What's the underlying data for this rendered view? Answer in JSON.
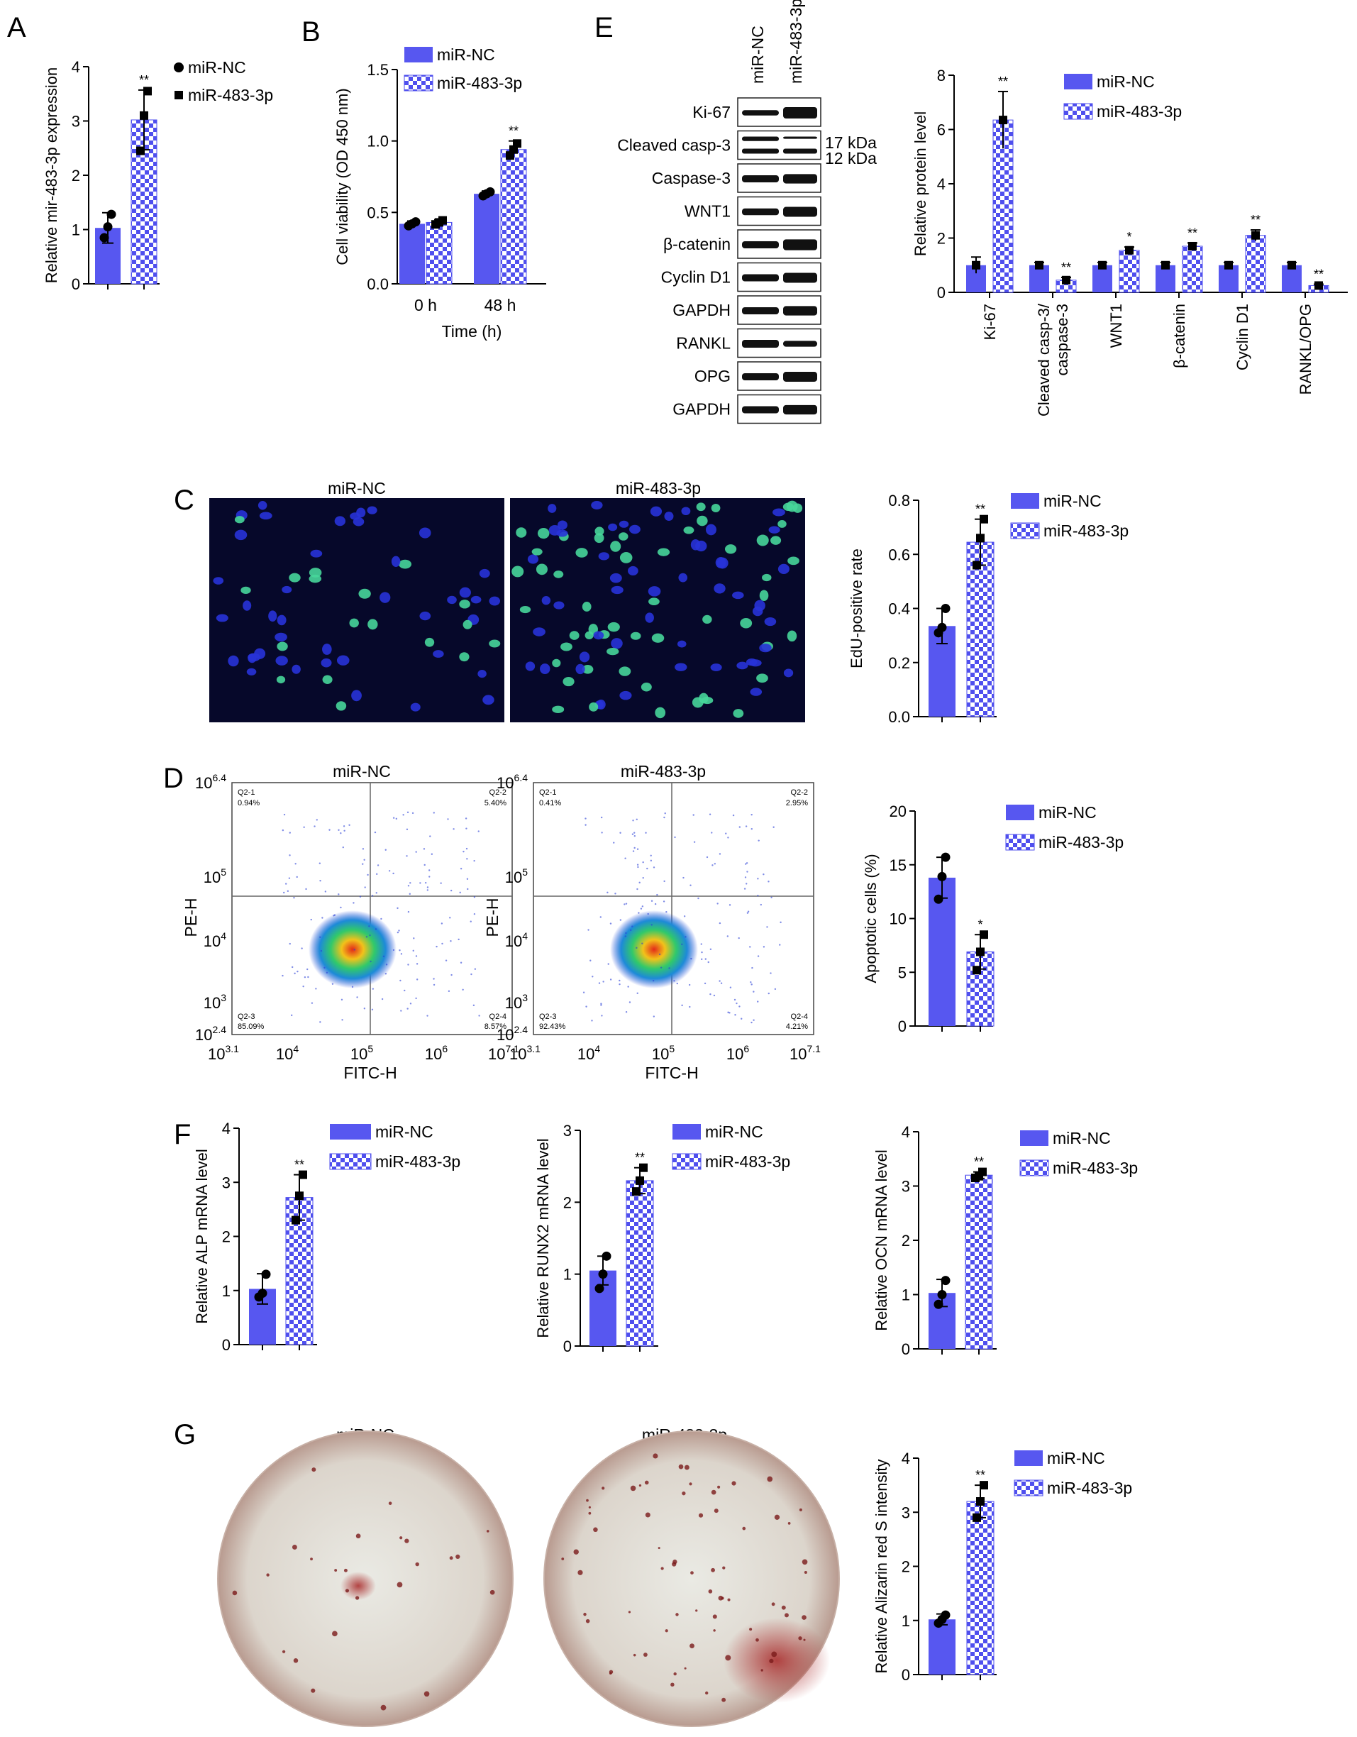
{
  "colors": {
    "nc": "#5757F0",
    "mir": "#4F4FEE",
    "axis": "#000000"
  },
  "panel_letters": [
    "A",
    "B",
    "C",
    "D",
    "E",
    "F",
    "G"
  ],
  "legend": {
    "nc": "miR-NC",
    "mir": "miR-483-3p"
  },
  "blot": {
    "lanes": [
      "miR-NC",
      "miR-483-3p"
    ],
    "proteins": [
      "Ki-67",
      "Cleaved casp-3",
      "Caspase-3",
      "WNT1",
      "β-catenin",
      "Cyclin D1",
      "GAPDH",
      "RANKL",
      "OPG",
      "GAPDH"
    ],
    "kda": [
      "17 kDa",
      "12 kDa"
    ]
  },
  "images": {
    "C": [
      "miR-NC",
      "miR-483-3p"
    ],
    "D": [
      "miR-NC",
      "miR-483-3p"
    ],
    "G": [
      "miR-NC",
      "miR-483-3p"
    ]
  },
  "flow": {
    "ylabel": "PE-H",
    "xlabel": "FITC-H",
    "yticks": [
      [
        "10",
        "6.4"
      ],
      [
        "10",
        "5"
      ],
      [
        "10",
        "4"
      ],
      [
        "10",
        "3"
      ],
      [
        "10",
        "2.4"
      ]
    ],
    "xticks": [
      [
        "10",
        "3.1"
      ],
      [
        "10",
        "4"
      ],
      [
        "10",
        "5"
      ],
      [
        "10",
        "6"
      ],
      [
        "10",
        "7.1"
      ]
    ],
    "plots": [
      {
        "q1": [
          "Q2-1",
          "0.94%"
        ],
        "q2": [
          "Q2-2",
          "5.40%"
        ],
        "q3": [
          "Q2-3",
          "85.09%"
        ],
        "q4": [
          "Q2-4",
          "8.57%"
        ]
      },
      {
        "q1": [
          "Q2-1",
          "0.41%"
        ],
        "q2": [
          "Q2-2",
          "2.95%"
        ],
        "q3": [
          "Q2-3",
          "92.43%"
        ],
        "q4": [
          "Q2-4",
          "4.21%"
        ]
      }
    ]
  },
  "chart_data": [
    {
      "id": "A",
      "type": "bar",
      "ylabel": "Relative mir-483-3p expression",
      "ylim": [
        0,
        4
      ],
      "yticks": [
        "0",
        "1",
        "2",
        "3",
        "4"
      ],
      "categories": [
        "miR-NC",
        "miR-483-3p"
      ],
      "values": [
        1.03,
        3.02
      ],
      "errors": [
        0.28,
        0.55
      ],
      "sig": [
        "",
        "**"
      ],
      "points": [
        [
          0.85,
          1.05,
          1.28
        ],
        [
          2.45,
          3.1,
          3.55
        ]
      ],
      "legend": [
        "miR-NC",
        "miR-483-3p"
      ]
    },
    {
      "id": "B",
      "type": "bar",
      "ylabel": "Cell viability (OD 450 nm)",
      "xlabel": "Time (h)",
      "ylim": [
        0,
        1.5
      ],
      "yticks": [
        "0.0",
        "0.5",
        "1.0",
        "1.5"
      ],
      "categories": [
        "0 h",
        "48 h"
      ],
      "series": [
        {
          "name": "miR-NC",
          "values": [
            0.42,
            0.63
          ],
          "errors": [
            0.02,
            0.02
          ]
        },
        {
          "name": "miR-483-3p",
          "values": [
            0.43,
            0.94
          ],
          "errors": [
            0.02,
            0.06
          ]
        }
      ],
      "sig": [
        "",
        "**"
      ]
    },
    {
      "id": "E",
      "type": "bar",
      "ylabel": "Relative protein level",
      "ylim": [
        0,
        8
      ],
      "yticks": [
        "0",
        "2",
        "4",
        "6",
        "8"
      ],
      "categories": [
        "Ki-67",
        "Cleaved casp-3/\ncaspase-3",
        "WNT1",
        "β-catenin",
        "Cyclin D1",
        "RANKL/OPG"
      ],
      "series": [
        {
          "name": "miR-NC",
          "values": [
            1.0,
            1.0,
            1.0,
            1.0,
            1.0,
            1.0
          ],
          "errors": [
            0.3,
            0.1,
            0.1,
            0.1,
            0.1,
            0.1
          ]
        },
        {
          "name": "miR-483-3p",
          "values": [
            6.35,
            0.45,
            1.55,
            1.7,
            2.1,
            0.25
          ],
          "errors": [
            1.05,
            0.1,
            0.12,
            0.12,
            0.2,
            0.05
          ]
        }
      ],
      "sig": [
        "**",
        "**",
        "*",
        "**",
        "**",
        "**"
      ]
    },
    {
      "id": "C",
      "type": "bar",
      "ylabel": "EdU-positive rate",
      "ylim": [
        0,
        0.8
      ],
      "yticks": [
        "0.0",
        "0.2",
        "0.4",
        "0.6",
        "0.8"
      ],
      "categories": [
        "miR-NC",
        "miR-483-3p"
      ],
      "values": [
        0.335,
        0.645
      ],
      "errors": [
        0.065,
        0.085
      ],
      "sig": [
        "",
        "**"
      ],
      "points": [
        [
          0.31,
          0.33,
          0.4
        ],
        [
          0.56,
          0.66,
          0.73
        ]
      ]
    },
    {
      "id": "D",
      "type": "bar",
      "ylabel": "Apoptotic cells (%)",
      "ylim": [
        0,
        20
      ],
      "yticks": [
        "0",
        "5",
        "10",
        "15",
        "20"
      ],
      "categories": [
        "miR-NC",
        "miR-483-3p"
      ],
      "values": [
        13.8,
        6.9
      ],
      "errors": [
        1.9,
        1.6
      ],
      "sig": [
        "",
        "*"
      ],
      "points": [
        [
          11.8,
          13.9,
          15.7
        ],
        [
          5.2,
          6.9,
          8.5
        ]
      ]
    },
    {
      "id": "F1",
      "type": "bar",
      "ylabel": "Relative ALP mRNA level",
      "ylim": [
        0,
        4
      ],
      "yticks": [
        "0",
        "1",
        "2",
        "3",
        "4"
      ],
      "categories": [
        "miR-NC",
        "miR-483-3p"
      ],
      "values": [
        1.03,
        2.72
      ],
      "errors": [
        0.28,
        0.42
      ],
      "sig": [
        "",
        "**"
      ],
      "points": [
        [
          0.88,
          0.95,
          1.3
        ],
        [
          2.3,
          2.75,
          3.14
        ]
      ]
    },
    {
      "id": "F2",
      "type": "bar",
      "ylabel": "Relative RUNX2 mRNA level",
      "ylim": [
        0,
        3
      ],
      "yticks": [
        "0",
        "1",
        "2",
        "3"
      ],
      "categories": [
        "miR-NC",
        "miR-483-3p"
      ],
      "values": [
        1.05,
        2.3
      ],
      "errors": [
        0.2,
        0.18
      ],
      "sig": [
        "",
        "**"
      ],
      "points": [
        [
          0.8,
          1.0,
          1.25
        ],
        [
          2.15,
          2.3,
          2.48
        ]
      ]
    },
    {
      "id": "F3",
      "type": "bar",
      "ylabel": "Relative OCN mRNA level",
      "ylim": [
        0,
        4
      ],
      "yticks": [
        "0",
        "1",
        "2",
        "3",
        "4"
      ],
      "categories": [
        "miR-NC",
        "miR-483-3p"
      ],
      "values": [
        1.03,
        3.2
      ],
      "errors": [
        0.25,
        0.06
      ],
      "sig": [
        "",
        "**"
      ],
      "points": [
        [
          0.82,
          1.0,
          1.26
        ],
        [
          3.15,
          3.18,
          3.26
        ]
      ]
    },
    {
      "id": "G",
      "type": "bar",
      "ylabel": "Relative Alizarin red S intensity",
      "ylim": [
        0,
        4
      ],
      "yticks": [
        "0",
        "1",
        "2",
        "3",
        "4"
      ],
      "categories": [
        "miR-NC",
        "miR-483-3p"
      ],
      "values": [
        1.02,
        3.2
      ],
      "errors": [
        0.1,
        0.3
      ],
      "sig": [
        "",
        "**"
      ],
      "points": [
        [
          0.95,
          1.02,
          1.1
        ],
        [
          2.9,
          3.2,
          3.5
        ]
      ]
    }
  ]
}
